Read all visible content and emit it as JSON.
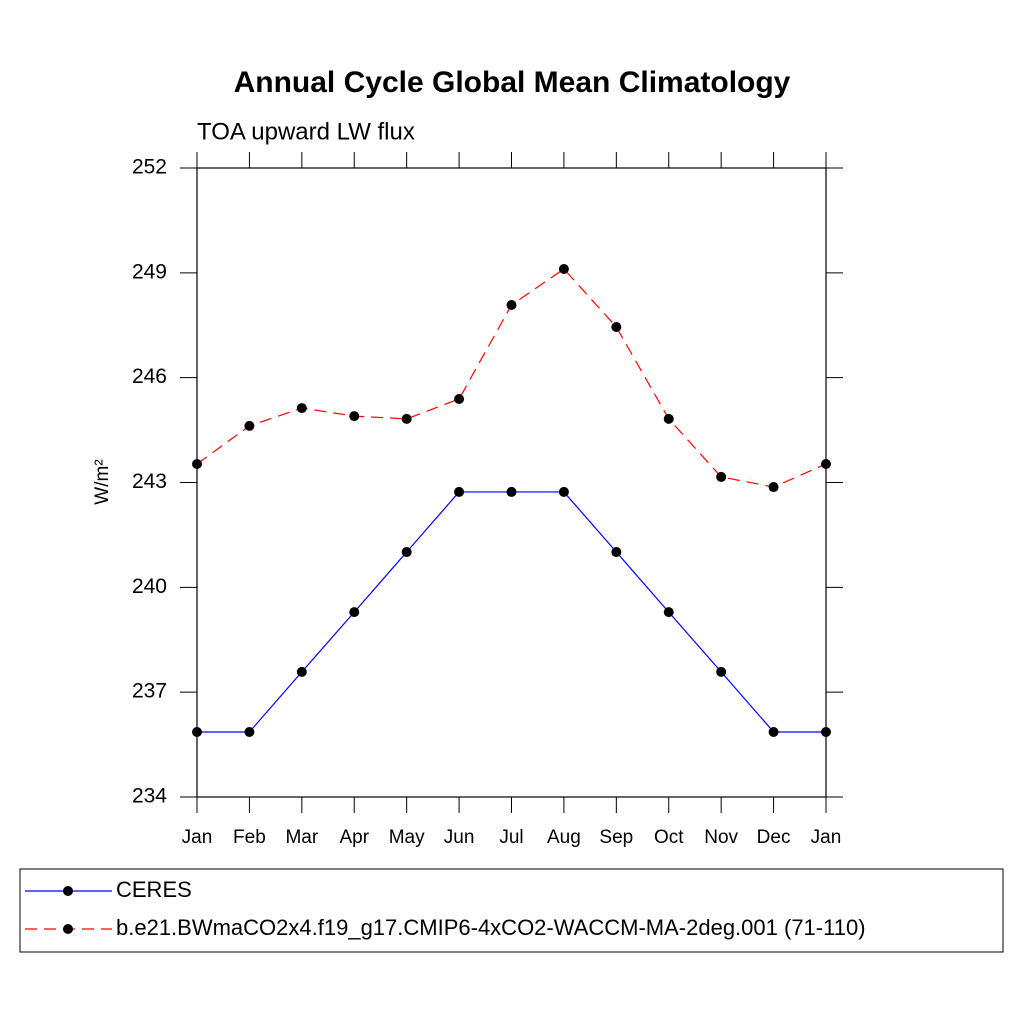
{
  "chart_data": {
    "type": "line",
    "title": "Annual Cycle Global Mean Climatology",
    "subtitle": "TOA upward LW flux",
    "y_label": "W/m²",
    "categories": [
      "Jan",
      "Feb",
      "Mar",
      "Apr",
      "May",
      "Jun",
      "Jul",
      "Aug",
      "Sep",
      "Oct",
      "Nov",
      "Dec",
      "Jan"
    ],
    "series": [
      {
        "name": "CERES",
        "color": "#0000ff",
        "dash": "solid",
        "values": [
          235.86,
          235.86,
          237.58,
          239.29,
          241.01,
          242.73,
          242.73,
          242.73,
          241.01,
          239.29,
          237.58,
          235.86,
          235.86
        ]
      },
      {
        "name": "b.e21.BWmaCO2x4.f19_g17.CMIP6-4xCO2-WACCM-MA-2deg.001 (71-110)",
        "color": "#ff0000",
        "dash": "dashed",
        "values": [
          243.53,
          244.62,
          245.13,
          244.9,
          244.82,
          245.39,
          248.08,
          249.11,
          247.45,
          244.82,
          243.16,
          242.87,
          243.53
        ]
      }
    ],
    "ylim": [
      234,
      252
    ],
    "yticks": [
      234,
      237,
      240,
      243,
      246,
      249,
      252
    ],
    "legend": "bottom"
  }
}
